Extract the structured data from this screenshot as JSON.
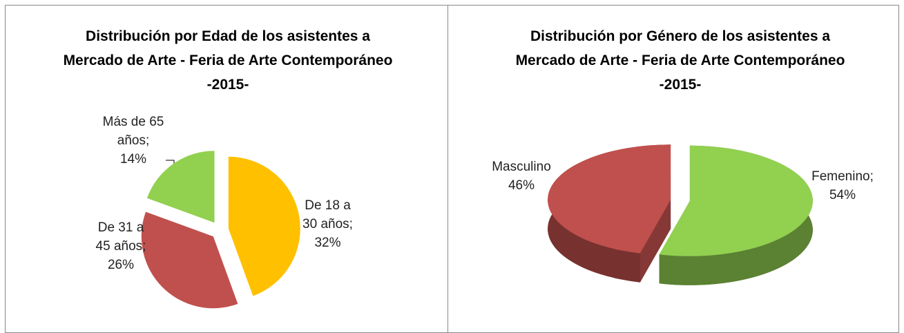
{
  "chart_data": [
    {
      "type": "pie",
      "title": "Distribución por Edad de los asistentes a Mercado de Arte - Feria de Arte Contemporáneo -2015-",
      "categories": [
        "De 18 a 30 años;",
        "De 31 a 45 años;",
        "Más de 65 años;"
      ],
      "values": [
        32,
        26,
        14
      ],
      "value_labels": [
        "32%",
        "26%",
        "14%"
      ],
      "colors": [
        "#ffc000",
        "#c0504d",
        "#92d050"
      ]
    },
    {
      "type": "pie3d",
      "title": "Distribución por Género de los asistentes a Mercado de Arte - Feria de Arte Contemporáneo -2015-",
      "categories": [
        "Femenino;",
        "Masculino"
      ],
      "values": [
        54,
        46
      ],
      "value_labels": [
        "54%",
        "46%"
      ],
      "colors": [
        "#92d050",
        "#c0504d"
      ]
    }
  ]
}
